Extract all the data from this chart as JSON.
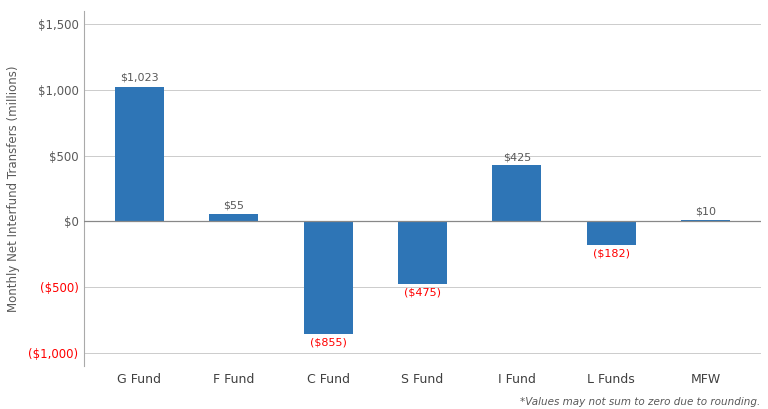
{
  "categories": [
    "G Fund",
    "F Fund",
    "C Fund",
    "S Fund",
    "I Fund",
    "L Funds",
    "MFW"
  ],
  "values": [
    1023,
    55,
    -855,
    -475,
    425,
    -182,
    10
  ],
  "bar_color": "#2E75B6",
  "positive_label_color": "#595959",
  "negative_label_color": "#FF0000",
  "ylabel": "Monthly Net Interfund Transfers (millions)",
  "ylim": [
    -1100,
    1600
  ],
  "yticks": [
    -1000,
    -500,
    0,
    500,
    1000,
    1500
  ],
  "ytick_labels": [
    "($1,000)",
    "($500)",
    "$0",
    "$500",
    "$1,000",
    "$1,500"
  ],
  "footnote": "*Values may not sum to zero due to rounding.",
  "background_color": "#FFFFFF",
  "grid_color": "#CCCCCC",
  "label_offsets": [
    30,
    25,
    30,
    30,
    25,
    25,
    25
  ]
}
